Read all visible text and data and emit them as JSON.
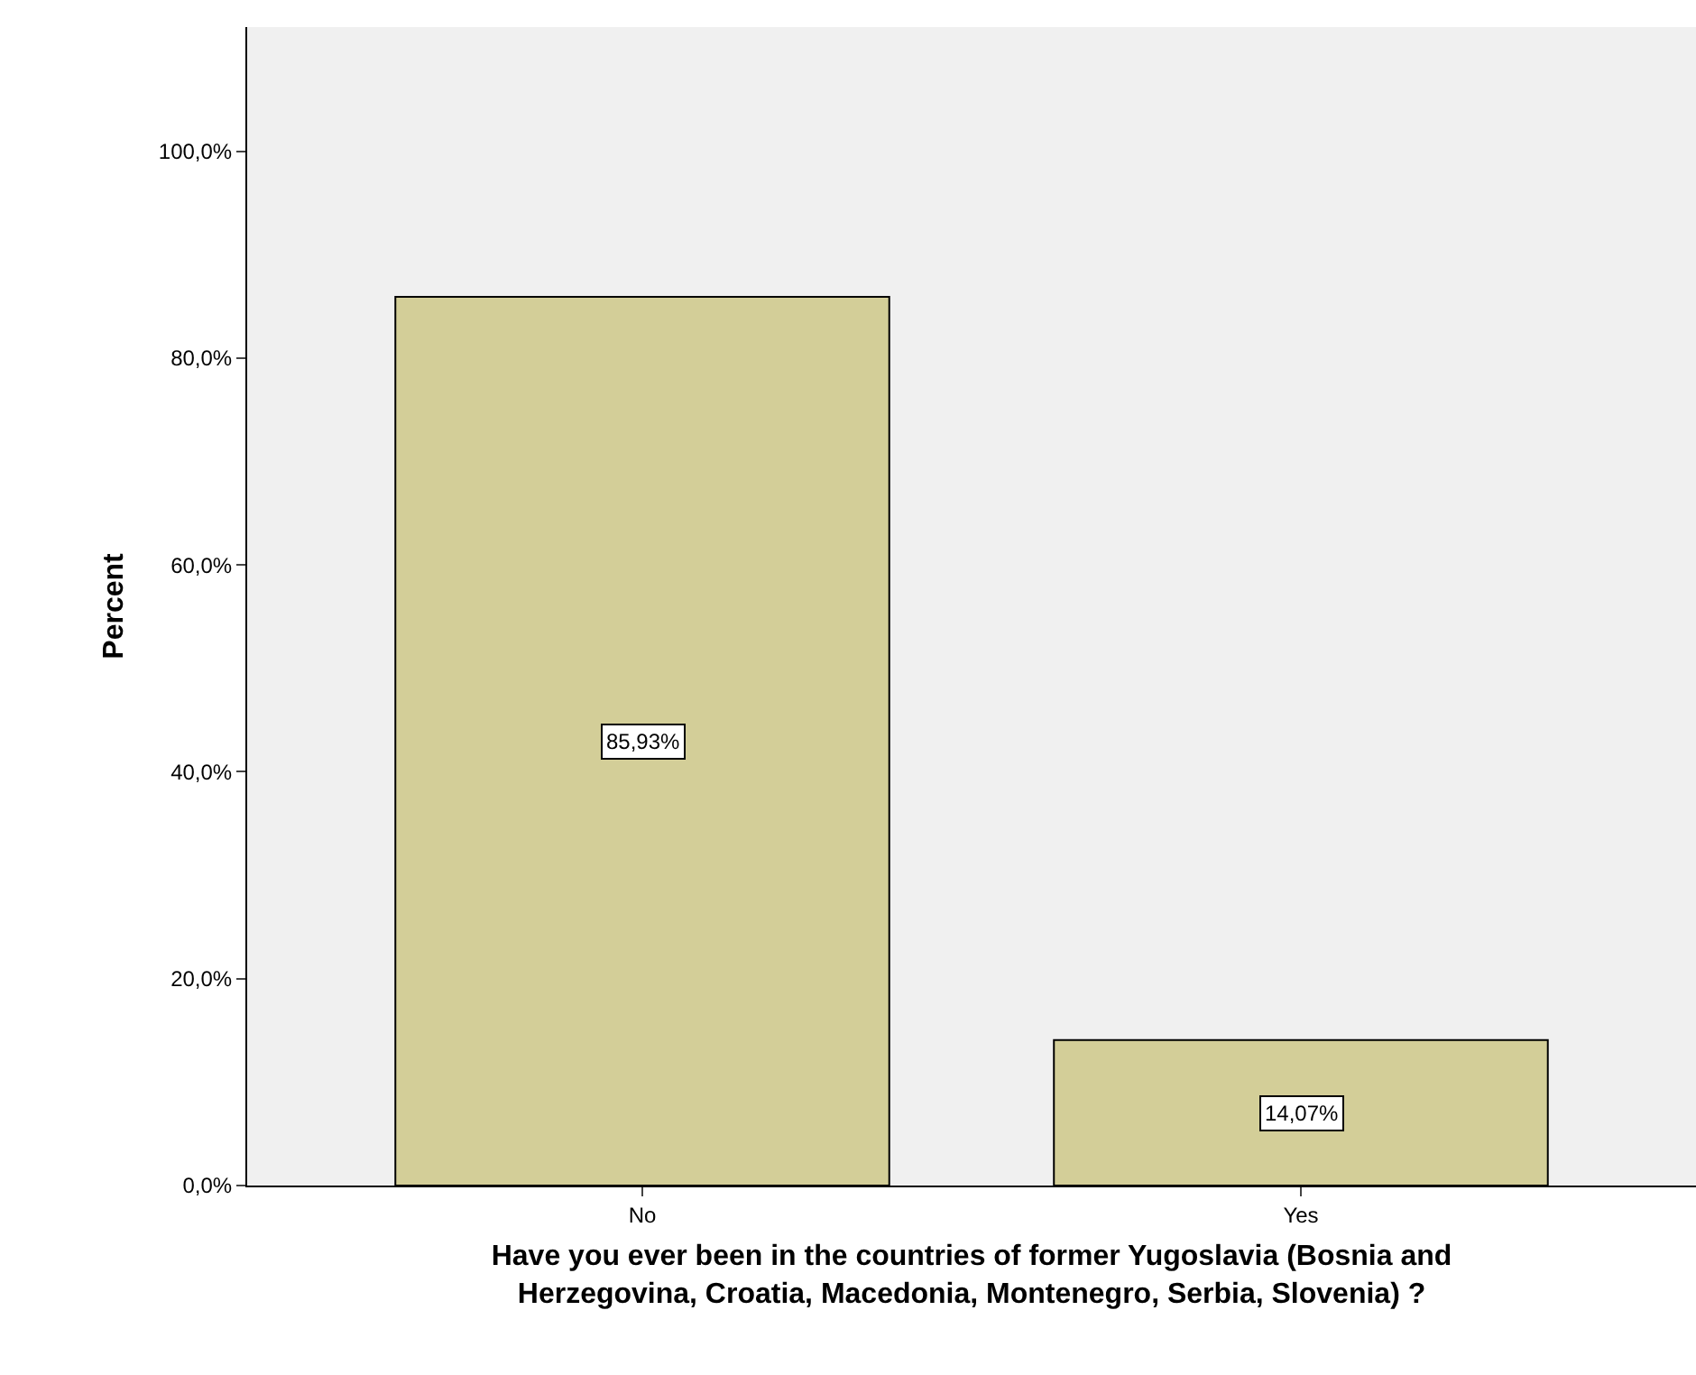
{
  "chart_data": {
    "type": "bar",
    "xlabel": "Have you ever been in the countries of former Yugoslavia (Bosnia and\nHerzegovina, Croatia, Macedonia, Montenegro, Serbia, Slovenia) ?",
    "ylabel": "Percent",
    "categories": [
      "No",
      "Yes"
    ],
    "values": [
      85.93,
      14.07
    ],
    "value_labels": [
      "85,93%",
      "14,07%"
    ],
    "color": "#d3ce98",
    "ylim": [
      0,
      112
    ],
    "yticks": [
      {
        "value": 0,
        "label": "0,0%"
      },
      {
        "value": 20,
        "label": "20,0%"
      },
      {
        "value": 40,
        "label": "40,0%"
      },
      {
        "value": 60,
        "label": "60,0%"
      },
      {
        "value": 80,
        "label": "80,0%"
      },
      {
        "value": 100,
        "label": "100,0%"
      }
    ],
    "grid": false,
    "legend": false
  }
}
